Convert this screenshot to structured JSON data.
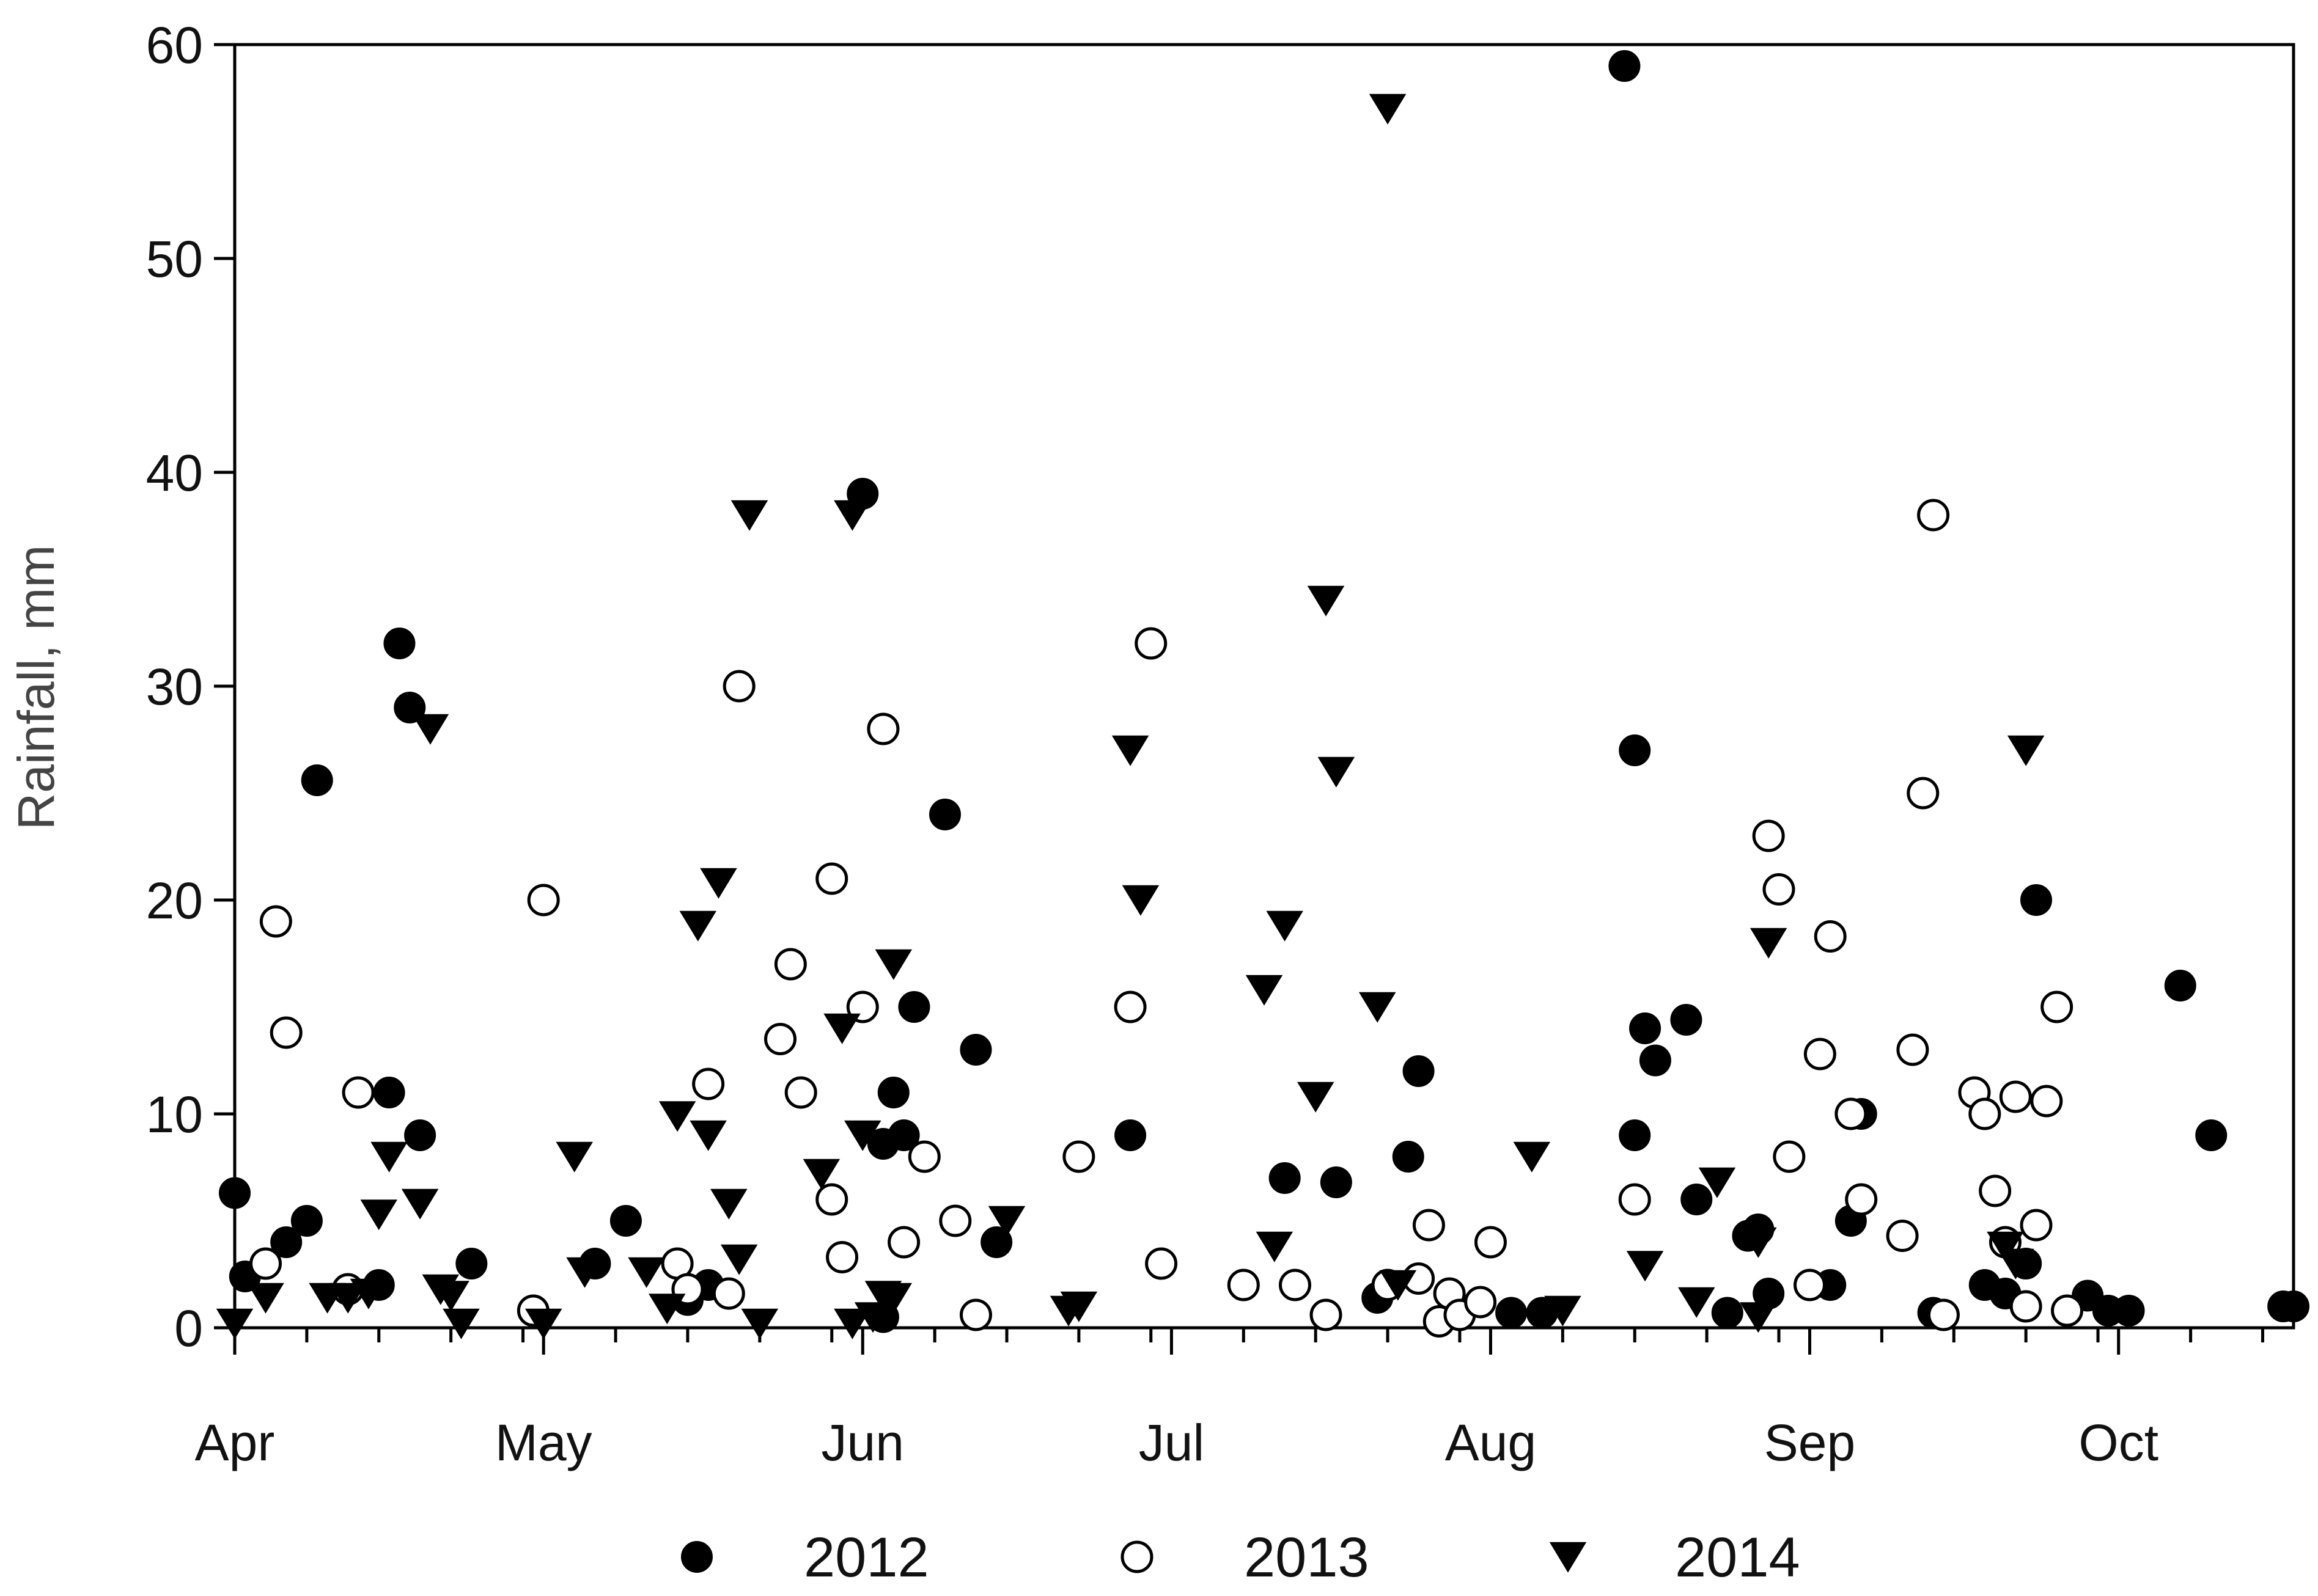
{
  "chart_data": {
    "type": "scatter",
    "ylabel": "Rainfall, mm",
    "xlabel": "",
    "ylim": [
      0,
      60
    ],
    "yticks": [
      "0",
      "10",
      "20",
      "30",
      "40",
      "50",
      "60"
    ],
    "x_axis": {
      "unit": "day of year (date axis)",
      "start": "Apr 1",
      "end": "Oct 18",
      "month_labels": [
        {
          "label": "Apr",
          "day": "Apr 1"
        },
        {
          "label": "May",
          "day": "May 1"
        },
        {
          "label": "Jun",
          "day": "Jun 1"
        },
        {
          "label": "Jul",
          "day": "Jul 1"
        },
        {
          "label": "Aug",
          "day": "Aug 1"
        },
        {
          "label": "Sep",
          "day": "Sep 1"
        },
        {
          "label": "Oct",
          "day": "Oct 1"
        }
      ]
    },
    "legend_placement": "bottom",
    "series": [
      {
        "name": "2012",
        "marker": "filled-circle",
        "points": [
          [
            "Apr 1",
            6.3
          ],
          [
            "Apr 2",
            2.4
          ],
          [
            "Apr 6",
            4.0
          ],
          [
            "Apr 8",
            5.0
          ],
          [
            "Apr 9",
            25.6
          ],
          [
            "Apr 15",
            2.0
          ],
          [
            "Apr 16",
            11.0
          ],
          [
            "Apr 17",
            32.0
          ],
          [
            "Apr 18",
            29.0
          ],
          [
            "Apr 19",
            9.0
          ],
          [
            "Apr 24",
            3.0
          ],
          [
            "May 6",
            3.0
          ],
          [
            "May 9",
            5.0
          ],
          [
            "May 15",
            1.3
          ],
          [
            "May 17",
            2.0
          ],
          [
            "Jun 1",
            39.0
          ],
          [
            "Jun 3",
            8.6
          ],
          [
            "Jun 3",
            0.5
          ],
          [
            "Jun 4",
            11.0
          ],
          [
            "Jun 5",
            9.0
          ],
          [
            "Jun 6",
            15.0
          ],
          [
            "Jun 9",
            24.0
          ],
          [
            "Jun 12",
            13.0
          ],
          [
            "Jun 14",
            4.0
          ],
          [
            "Jun 27",
            9.0
          ],
          [
            "Jul 12",
            7.0
          ],
          [
            "Jul 17",
            6.8
          ],
          [
            "Jul 21",
            1.4
          ],
          [
            "Jul 24",
            8.0
          ],
          [
            "Jul 25",
            12.0
          ],
          [
            "Aug 3",
            0.7
          ],
          [
            "Aug 6",
            0.7
          ],
          [
            "Aug 14",
            59.0
          ],
          [
            "Aug 15",
            27.0
          ],
          [
            "Aug 15",
            9.0
          ],
          [
            "Aug 16",
            14.0
          ],
          [
            "Aug 17",
            12.5
          ],
          [
            "Aug 20",
            14.4
          ],
          [
            "Aug 21",
            6.0
          ],
          [
            "Aug 24",
            0.7
          ],
          [
            "Aug 26",
            4.3
          ],
          [
            "Aug 27",
            4.6
          ],
          [
            "Aug 28",
            1.6
          ],
          [
            "Sep 3",
            2.0
          ],
          [
            "Sep 5",
            5.0
          ],
          [
            "Sep 6",
            10.0
          ],
          [
            "Sep 13",
            0.7
          ],
          [
            "Sep 18",
            2.0
          ],
          [
            "Sep 20",
            1.6
          ],
          [
            "Sep 22",
            3.0
          ],
          [
            "Sep 23",
            20.0
          ],
          [
            "Sep 28",
            1.5
          ],
          [
            "Sep 30",
            0.8
          ],
          [
            "Oct 2",
            0.8
          ],
          [
            "Oct 7",
            16.0
          ],
          [
            "Oct 10",
            9.0
          ],
          [
            "Oct 17",
            1.0
          ],
          [
            "Oct 18",
            1.0
          ]
        ]
      },
      {
        "name": "2013",
        "marker": "open-circle",
        "points": [
          [
            "Apr 4",
            3.0
          ],
          [
            "Apr 5",
            19.0
          ],
          [
            "Apr 6",
            13.8
          ],
          [
            "Apr 12",
            1.8
          ],
          [
            "Apr 13",
            11.0
          ],
          [
            "Apr 30",
            0.8
          ],
          [
            "May 1",
            20.0
          ],
          [
            "May 14",
            3.0
          ],
          [
            "May 15",
            1.8
          ],
          [
            "May 17",
            11.4
          ],
          [
            "May 19",
            1.6
          ],
          [
            "May 20",
            30.0
          ],
          [
            "May 24",
            13.5
          ],
          [
            "May 25",
            17.0
          ],
          [
            "May 26",
            11.0
          ],
          [
            "May 29",
            6.0
          ],
          [
            "May 30",
            3.3
          ],
          [
            "May 29",
            21.0
          ],
          [
            "Jun 1",
            15.0
          ],
          [
            "Jun 3",
            28.0
          ],
          [
            "Jun 5",
            4.0
          ],
          [
            "Jun 7",
            8.0
          ],
          [
            "Jun 10",
            5.0
          ],
          [
            "Jun 12",
            0.6
          ],
          [
            "Jun 22",
            8.0
          ],
          [
            "Jun 27",
            15.0
          ],
          [
            "Jun 29",
            32.0
          ],
          [
            "Jun 30",
            3.0
          ],
          [
            "Jul 8",
            2.0
          ],
          [
            "Jul 13",
            2.0
          ],
          [
            "Jul 16",
            0.6
          ],
          [
            "Jul 22",
            2.0
          ],
          [
            "Jul 25",
            2.3
          ],
          [
            "Jul 26",
            4.8
          ],
          [
            "Jul 27",
            0.3
          ],
          [
            "Jul 28",
            1.6
          ],
          [
            "Jul 29",
            0.6
          ],
          [
            "Jul 31",
            1.2
          ],
          [
            "Aug 1",
            4.0
          ],
          [
            "Aug 15",
            6.0
          ],
          [
            "Aug 28",
            23.0
          ],
          [
            "Aug 29",
            20.5
          ],
          [
            "Aug 30",
            8.0
          ],
          [
            "Sep 1",
            2.0
          ],
          [
            "Sep 2",
            12.8
          ],
          [
            "Sep 3",
            18.3
          ],
          [
            "Sep 5",
            10.0
          ],
          [
            "Sep 6",
            6.0
          ],
          [
            "Sep 10",
            4.3
          ],
          [
            "Sep 11",
            13.0
          ],
          [
            "Sep 12",
            25.0
          ],
          [
            "Sep 13",
            38.0
          ],
          [
            "Sep 14",
            0.6
          ],
          [
            "Sep 17",
            11.0
          ],
          [
            "Sep 18",
            10.0
          ],
          [
            "Sep 19",
            6.4
          ],
          [
            "Sep 20",
            4.0
          ],
          [
            "Sep 21",
            10.8
          ],
          [
            "Sep 22",
            1.0
          ],
          [
            "Sep 23",
            4.8
          ],
          [
            "Sep 24",
            10.6
          ],
          [
            "Sep 25",
            15.0
          ],
          [
            "Sep 26",
            0.8
          ]
        ]
      },
      {
        "name": "2014",
        "marker": "filled-triangle-down",
        "points": [
          [
            "Apr 1",
            0.2
          ],
          [
            "Apr 4",
            1.4
          ],
          [
            "Apr 10",
            1.4
          ],
          [
            "Apr 12",
            1.4
          ],
          [
            "Apr 14",
            1.6
          ],
          [
            "Apr 15",
            5.3
          ],
          [
            "Apr 16",
            8.0
          ],
          [
            "Apr 19",
            5.8
          ],
          [
            "Apr 20",
            28.0
          ],
          [
            "Apr 21",
            1.8
          ],
          [
            "Apr 22",
            1.5
          ],
          [
            "Apr 23",
            0.2
          ],
          [
            "May 1",
            0.2
          ],
          [
            "May 4",
            8.0
          ],
          [
            "May 5",
            2.6
          ],
          [
            "May 11",
            2.6
          ],
          [
            "May 13",
            0.9
          ],
          [
            "May 14",
            9.9
          ],
          [
            "May 16",
            18.8
          ],
          [
            "May 17",
            9.0
          ],
          [
            "May 18",
            20.8
          ],
          [
            "May 19",
            5.8
          ],
          [
            "May 20",
            3.2
          ],
          [
            "May 21",
            38.0
          ],
          [
            "May 22",
            0.2
          ],
          [
            "May 28",
            7.2
          ],
          [
            "May 30",
            14.0
          ],
          [
            "May 31",
            0.2
          ],
          [
            "May 31",
            38.0
          ],
          [
            "Jun 1",
            9.0
          ],
          [
            "Jun 2",
            0.5
          ],
          [
            "Jun 3",
            1.5
          ],
          [
            "Jun 4",
            1.4
          ],
          [
            "Jun 4",
            17.0
          ],
          [
            "Jun 15",
            5.0
          ],
          [
            "Jun 21",
            0.8
          ],
          [
            "Jun 22",
            1.0
          ],
          [
            "Jun 27",
            27.0
          ],
          [
            "Jun 28",
            20.0
          ],
          [
            "Jul 10",
            15.8
          ],
          [
            "Jul 11",
            3.8
          ],
          [
            "Jul 12",
            18.8
          ],
          [
            "Jul 15",
            10.8
          ],
          [
            "Jul 16",
            34.0
          ],
          [
            "Jul 17",
            26.0
          ],
          [
            "Jul 21",
            15.0
          ],
          [
            "Jul 22",
            57.0
          ],
          [
            "Jul 23",
            2.0
          ],
          [
            "Aug 5",
            8.0
          ],
          [
            "Aug 8",
            0.8
          ],
          [
            "Aug 16",
            2.9
          ],
          [
            "Aug 21",
            1.2
          ],
          [
            "Aug 23",
            6.8
          ],
          [
            "Aug 27",
            4.0
          ],
          [
            "Aug 27",
            0.5
          ],
          [
            "Aug 28",
            18.0
          ],
          [
            "Sep 20",
            3.8
          ],
          [
            "Sep 21",
            3.0
          ],
          [
            "Sep 22",
            27.0
          ]
        ]
      }
    ]
  }
}
